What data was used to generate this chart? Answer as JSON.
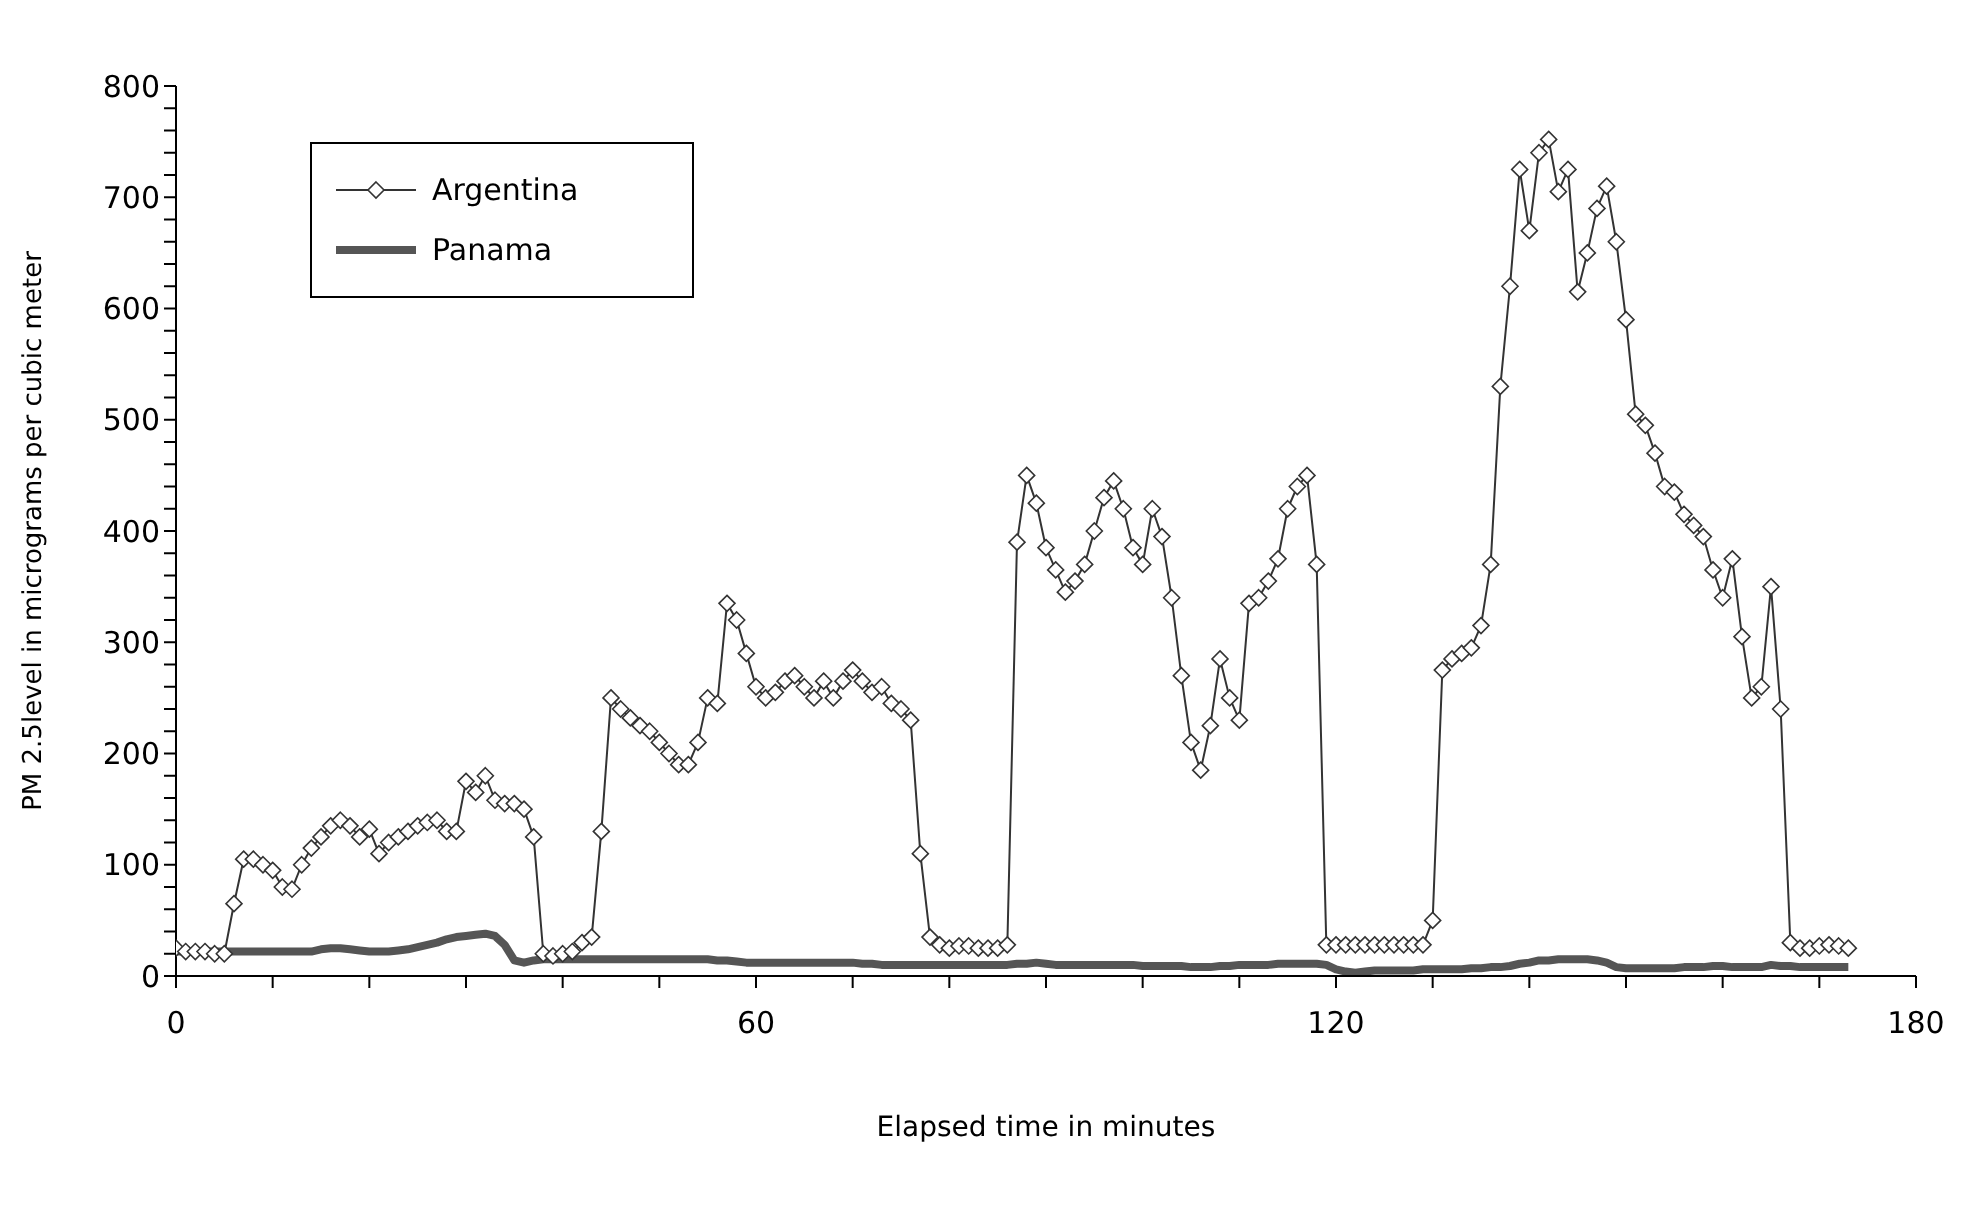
{
  "chart_data": {
    "type": "line",
    "xlabel": "Elapsed time in minutes",
    "ylabel": "PM 2.5level in micrograms per cubic meter",
    "x": [
      0,
      1,
      2,
      3,
      4,
      5,
      6,
      7,
      8,
      9,
      10,
      11,
      12,
      13,
      14,
      15,
      16,
      17,
      18,
      19,
      20,
      21,
      22,
      23,
      24,
      25,
      26,
      27,
      28,
      29,
      30,
      31,
      32,
      33,
      34,
      35,
      36,
      37,
      38,
      39,
      40,
      41,
      42,
      43,
      44,
      45,
      46,
      47,
      48,
      49,
      50,
      51,
      52,
      53,
      54,
      55,
      56,
      57,
      58,
      59,
      60,
      61,
      62,
      63,
      64,
      65,
      66,
      67,
      68,
      69,
      70,
      71,
      72,
      73,
      74,
      75,
      76,
      77,
      78,
      79,
      80,
      81,
      82,
      83,
      84,
      85,
      86,
      87,
      88,
      89,
      90,
      91,
      92,
      93,
      94,
      95,
      96,
      97,
      98,
      99,
      100,
      101,
      102,
      103,
      104,
      105,
      106,
      107,
      108,
      109,
      110,
      111,
      112,
      113,
      114,
      115,
      116,
      117,
      118,
      119,
      120,
      121,
      122,
      123,
      124,
      125,
      126,
      127,
      128,
      129,
      130,
      131,
      132,
      133,
      134,
      135,
      136,
      137,
      138,
      139,
      140,
      141,
      142,
      143,
      144,
      145,
      146,
      147,
      148,
      149,
      150,
      151,
      152,
      153,
      154,
      155,
      156,
      157,
      158,
      159,
      160,
      161,
      162,
      163,
      164,
      165,
      166,
      167,
      168,
      169,
      170,
      171,
      172,
      173
    ],
    "series": [
      {
        "name": "Argentina",
        "color": "#333333",
        "marker": "diamond",
        "values": [
          25,
          22,
          22,
          22,
          20,
          20,
          65,
          105,
          105,
          100,
          95,
          80,
          78,
          100,
          115,
          125,
          135,
          140,
          135,
          125,
          132,
          110,
          120,
          125,
          130,
          135,
          138,
          140,
          130,
          130,
          175,
          165,
          180,
          158,
          155,
          155,
          150,
          125,
          20,
          18,
          20,
          22,
          30,
          35,
          130,
          250,
          240,
          232,
          225,
          220,
          210,
          200,
          190,
          190,
          210,
          250,
          245,
          335,
          320,
          290,
          260,
          250,
          255,
          265,
          270,
          260,
          250,
          265,
          250,
          265,
          275,
          265,
          255,
          260,
          245,
          240,
          230,
          110,
          35,
          28,
          25,
          27,
          27,
          25,
          25,
          25,
          28,
          390,
          450,
          425,
          385,
          365,
          345,
          355,
          370,
          400,
          430,
          445,
          420,
          385,
          370,
          420,
          395,
          340,
          270,
          210,
          185,
          225,
          285,
          250,
          230,
          335,
          340,
          355,
          375,
          420,
          440,
          450,
          370,
          28,
          28,
          28,
          28,
          28,
          28,
          28,
          28,
          28,
          28,
          28,
          50,
          275,
          285,
          290,
          295,
          315,
          370,
          530,
          620,
          725,
          670,
          740,
          752,
          705,
          725,
          615,
          650,
          690,
          710,
          660,
          590,
          505,
          495,
          470,
          440,
          435,
          415,
          405,
          395,
          365,
          340,
          375,
          305,
          250,
          260,
          350,
          240,
          30,
          25,
          25,
          27,
          28,
          27,
          25
        ]
      },
      {
        "name": "Panama",
        "color": "#555555",
        "marker": "none",
        "values": [
          22,
          22,
          22,
          22,
          22,
          22,
          22,
          22,
          22,
          22,
          22,
          22,
          22,
          22,
          22,
          24,
          25,
          25,
          24,
          23,
          22,
          22,
          22,
          23,
          24,
          26,
          28,
          30,
          33,
          35,
          36,
          37,
          38,
          36,
          28,
          14,
          12,
          14,
          15,
          15,
          15,
          15,
          15,
          15,
          15,
          15,
          15,
          15,
          15,
          15,
          15,
          15,
          15,
          15,
          15,
          15,
          14,
          14,
          13,
          12,
          12,
          12,
          12,
          12,
          12,
          12,
          12,
          12,
          12,
          12,
          12,
          11,
          11,
          10,
          10,
          10,
          10,
          10,
          10,
          10,
          10,
          10,
          10,
          10,
          10,
          10,
          10,
          11,
          11,
          12,
          11,
          10,
          10,
          10,
          10,
          10,
          10,
          10,
          10,
          10,
          9,
          9,
          9,
          9,
          9,
          8,
          8,
          8,
          9,
          9,
          10,
          10,
          10,
          10,
          11,
          11,
          11,
          11,
          11,
          10,
          6,
          4,
          3,
          4,
          5,
          5,
          5,
          5,
          5,
          6,
          6,
          6,
          6,
          6,
          7,
          7,
          8,
          8,
          9,
          11,
          12,
          14,
          14,
          15,
          15,
          15,
          15,
          14,
          12,
          8,
          7,
          7,
          7,
          7,
          7,
          7,
          8,
          8,
          8,
          9,
          9,
          8,
          8,
          8,
          8,
          10,
          9,
          9,
          8,
          8,
          8,
          8,
          8,
          8
        ]
      }
    ],
    "xlim": [
      0,
      180
    ],
    "xticks": [
      0,
      {
        "value": 10,
        "label": null
      },
      {
        "value": 20,
        "label": null
      },
      {
        "value": 30,
        "label": null
      },
      {
        "value": 40,
        "label": null
      },
      {
        "value": 50,
        "label": null
      },
      60,
      {
        "value": 70,
        "label": null
      },
      {
        "value": 80,
        "label": null
      },
      {
        "value": 90,
        "label": null
      },
      {
        "value": 100,
        "label": null
      },
      {
        "value": 110,
        "label": null
      },
      120,
      {
        "value": 130,
        "label": null
      },
      {
        "value": 140,
        "label": null
      },
      {
        "value": 150,
        "label": null
      },
      {
        "value": 160,
        "label": null
      },
      {
        "value": 170,
        "label": null
      },
      180
    ],
    "ylim": [
      0,
      800
    ],
    "yticks": [
      0,
      {
        "value": 20,
        "label": null
      },
      {
        "value": 40,
        "label": null
      },
      {
        "value": 60,
        "label": null
      },
      {
        "value": 80,
        "label": null
      },
      100,
      {
        "value": 120,
        "label": null
      },
      {
        "value": 140,
        "label": null
      },
      {
        "value": 160,
        "label": null
      },
      {
        "value": 180,
        "label": null
      },
      200,
      {
        "value": 220,
        "label": null
      },
      {
        "value": 240,
        "label": null
      },
      {
        "value": 260,
        "label": null
      },
      {
        "value": 280,
        "label": null
      },
      300,
      {
        "value": 320,
        "label": null
      },
      {
        "value": 340,
        "label": null
      },
      {
        "value": 360,
        "label": null
      },
      {
        "value": 380,
        "label": null
      },
      400,
      {
        "value": 420,
        "label": null
      },
      {
        "value": 440,
        "label": null
      },
      {
        "value": 460,
        "label": null
      },
      {
        "value": 480,
        "label": null
      },
      500,
      {
        "value": 520,
        "label": null
      },
      {
        "value": 540,
        "label": null
      },
      {
        "value": 560,
        "label": null
      },
      {
        "value": 580,
        "label": null
      },
      600,
      {
        "value": 620,
        "label": null
      },
      {
        "value": 640,
        "label": null
      },
      {
        "value": 660,
        "label": null
      },
      {
        "value": 680,
        "label": null
      },
      700,
      {
        "value": 720,
        "label": null
      },
      {
        "value": 740,
        "label": null
      },
      {
        "value": 760,
        "label": null
      },
      {
        "value": 780,
        "label": null
      },
      800
    ],
    "grid": false,
    "legend": "top left"
  }
}
